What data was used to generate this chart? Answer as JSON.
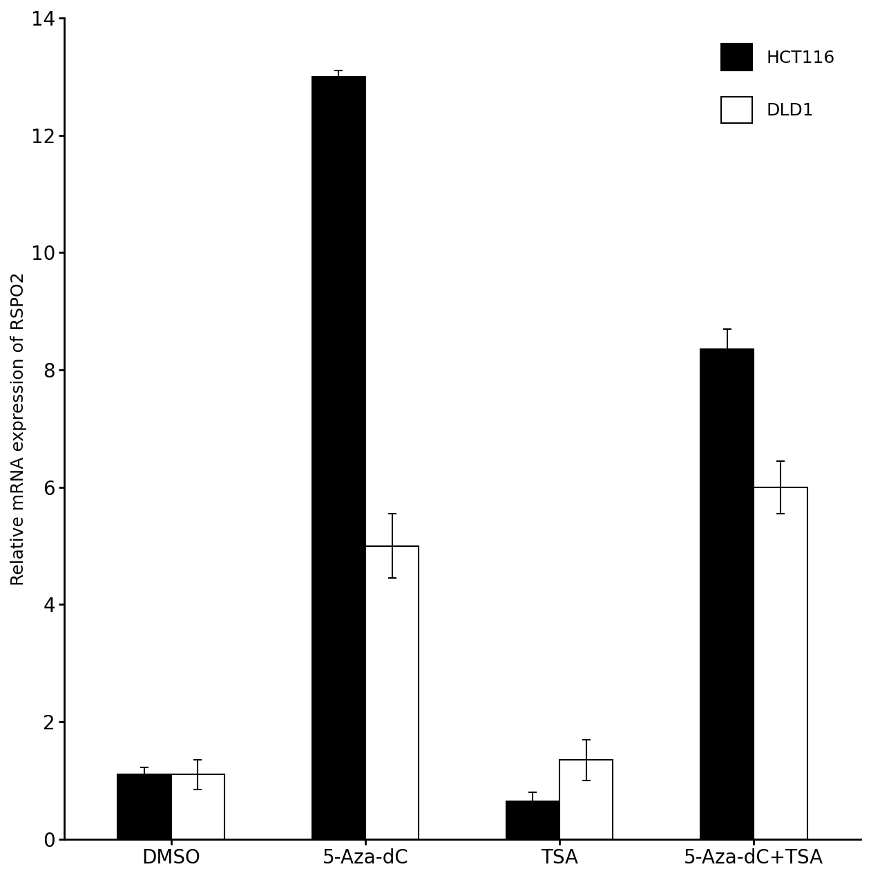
{
  "categories": [
    "DMSO",
    "5-Aza-dC",
    "TSA",
    "5-Aza-dC+TSA"
  ],
  "hct116_values": [
    1.1,
    13.0,
    0.65,
    8.35
  ],
  "dld1_values": [
    1.1,
    5.0,
    1.35,
    6.0
  ],
  "hct116_errors": [
    0.12,
    0.1,
    0.15,
    0.35
  ],
  "dld1_errors": [
    0.25,
    0.55,
    0.35,
    0.45
  ],
  "hct116_color": "#000000",
  "dld1_color": "#ffffff",
  "bar_edge_color": "#000000",
  "ylabel": "Relative mRNA expression of RSPO2",
  "ylim": [
    0,
    14
  ],
  "yticks": [
    0,
    2,
    4,
    6,
    8,
    10,
    12,
    14
  ],
  "legend_labels": [
    "HCT116",
    "DLD1"
  ],
  "bar_width": 0.55,
  "group_positions": [
    1.0,
    3.0,
    5.0,
    7.0
  ],
  "tick_fontsize": 20,
  "legend_fontsize": 18,
  "ylabel_fontsize": 18
}
